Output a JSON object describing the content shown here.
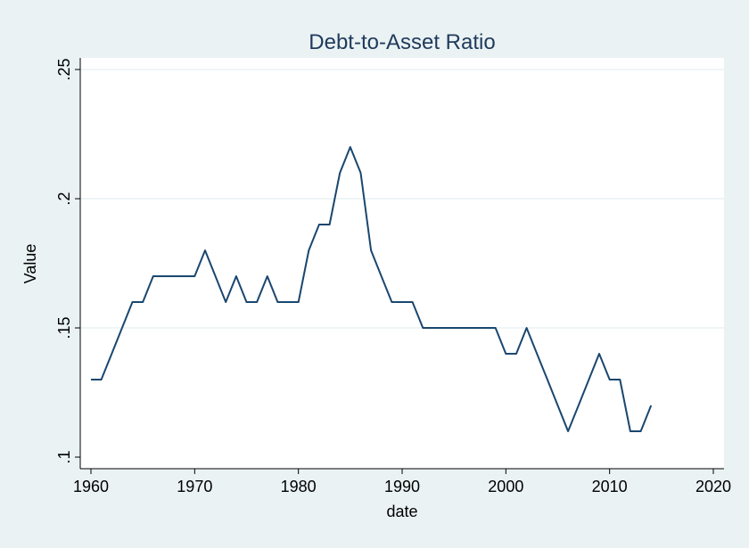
{
  "chart_data": {
    "type": "line",
    "title": "Debt-to-Asset Ratio",
    "xlabel": "date",
    "ylabel": "Value",
    "xlim": [
      1960,
      2020
    ],
    "ylim": [
      0.1,
      0.25
    ],
    "xticks": [
      1960,
      1970,
      1980,
      1990,
      2000,
      2010,
      2020
    ],
    "xtick_labels": [
      "1960",
      "1970",
      "1980",
      "1990",
      "2000",
      "2010",
      "2020"
    ],
    "yticks": [
      0.1,
      0.15,
      0.2,
      0.25
    ],
    "ytick_labels": [
      ".1",
      ".15",
      ".2",
      ".25"
    ],
    "grid": "horizontal",
    "colors": {
      "line": "#1a476f",
      "plot_bg": "#ffffff",
      "outer_bg": "#eaf2f3",
      "grid": "#eaf2f3",
      "title": "#1f3a5c"
    },
    "series": [
      {
        "x": [
          1960,
          1961,
          1962,
          1963,
          1964,
          1965,
          1966,
          1967,
          1968,
          1969,
          1970,
          1971,
          1972,
          1973,
          1974,
          1975,
          1976,
          1977,
          1978,
          1979,
          1980,
          1981,
          1982,
          1983,
          1984,
          1985,
          1986,
          1987,
          1988,
          1989,
          1990,
          1991,
          1992,
          1993,
          1994,
          1995,
          1996,
          1997,
          1998,
          1999,
          2000,
          2001,
          2002,
          2003,
          2004,
          2005,
          2006,
          2007,
          2008,
          2009,
          2010,
          2011,
          2012,
          2013,
          2014
        ],
        "values": [
          0.13,
          0.13,
          0.14,
          0.15,
          0.16,
          0.16,
          0.17,
          0.17,
          0.17,
          0.17,
          0.17,
          0.18,
          0.17,
          0.16,
          0.17,
          0.16,
          0.16,
          0.17,
          0.16,
          0.16,
          0.16,
          0.18,
          0.19,
          0.19,
          0.21,
          0.22,
          0.21,
          0.18,
          0.17,
          0.16,
          0.16,
          0.16,
          0.15,
          0.15,
          0.15,
          0.15,
          0.15,
          0.15,
          0.15,
          0.15,
          0.14,
          0.14,
          0.15,
          0.14,
          0.13,
          0.12,
          0.11,
          0.12,
          0.13,
          0.14,
          0.13,
          0.13,
          0.11,
          0.11,
          0.12
        ]
      }
    ]
  }
}
